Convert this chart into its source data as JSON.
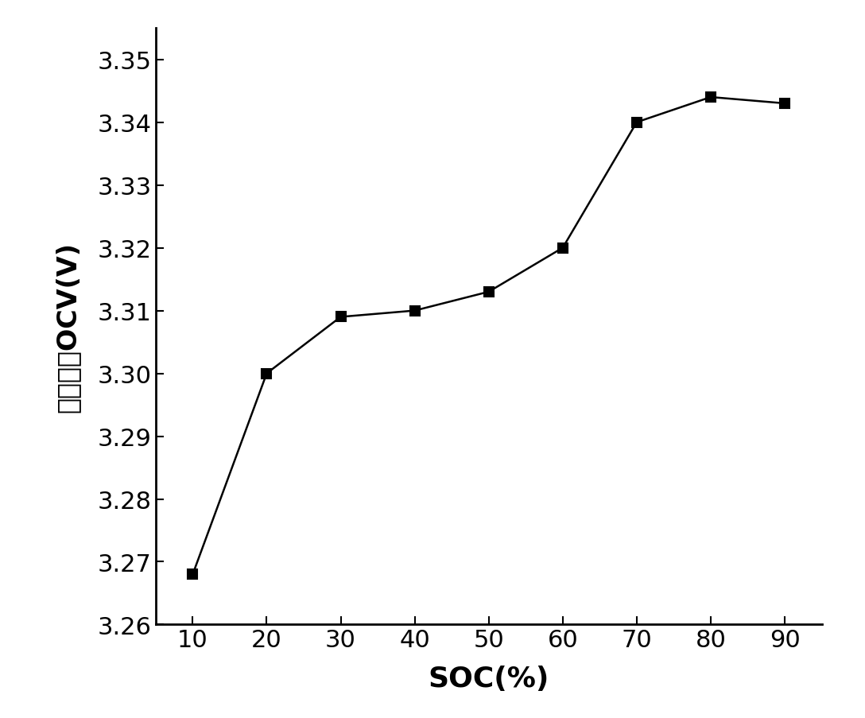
{
  "x": [
    10,
    20,
    30,
    40,
    50,
    60,
    70,
    80,
    90
  ],
  "y": [
    3.268,
    3.3,
    3.309,
    3.31,
    3.313,
    3.32,
    3.34,
    3.344,
    3.343
  ],
  "xlabel": "SOC(%)",
  "ylabel": "开路电压OCV(V)",
  "xlim": [
    5,
    95
  ],
  "ylim": [
    3.26,
    3.355
  ],
  "xticks": [
    10,
    20,
    30,
    40,
    50,
    60,
    70,
    80,
    90
  ],
  "yticks": [
    3.26,
    3.27,
    3.28,
    3.29,
    3.3,
    3.31,
    3.32,
    3.33,
    3.34,
    3.35
  ],
  "line_color": "#000000",
  "marker": "s",
  "marker_size": 9,
  "marker_color": "#000000",
  "line_width": 1.8,
  "background_color": "#ffffff",
  "xlabel_fontsize": 26,
  "ylabel_fontsize": 24,
  "tick_fontsize": 22,
  "spine_linewidth": 2.0,
  "figsize": [
    10.88,
    9.04
  ],
  "dpi": 100
}
